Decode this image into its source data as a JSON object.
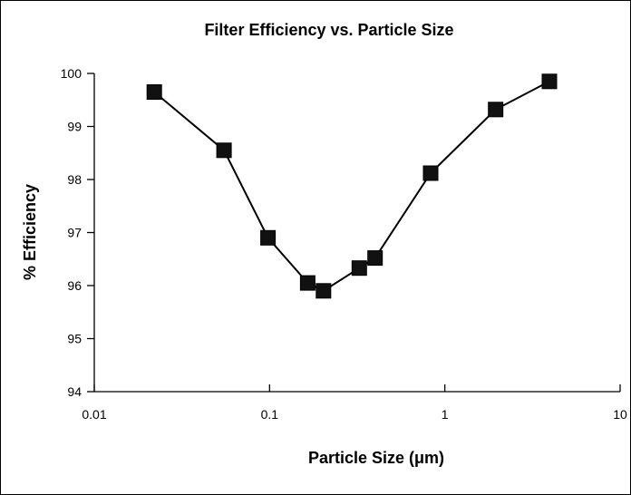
{
  "chart_data": {
    "type": "scatter",
    "title": "Filter Efficiency vs. Particle Size",
    "xlabel": "Particle Size (μm)",
    "ylabel": "% Efficiency",
    "x_scale": "log",
    "xlim": [
      0.01,
      10
    ],
    "ylim": [
      94,
      100
    ],
    "x_ticks": [
      0.01,
      0.1,
      1,
      10
    ],
    "x_tick_labels": [
      "0.01",
      "0.1",
      "1",
      "10"
    ],
    "y_ticks": [
      94,
      95,
      96,
      97,
      98,
      99,
      100
    ],
    "y_tick_labels": [
      "94",
      "95",
      "96",
      "97",
      "98",
      "99",
      "100"
    ],
    "grid": false,
    "legend": "none",
    "series": [
      {
        "x": [
          0.022,
          0.055,
          0.098,
          0.165,
          0.203,
          0.325,
          0.4,
          0.83,
          1.95,
          3.95
        ],
        "y": [
          99.65,
          98.55,
          96.9,
          96.05,
          95.9,
          96.33,
          96.52,
          98.12,
          99.32,
          99.85
        ],
        "marker": "square",
        "color": "#111111"
      }
    ]
  }
}
